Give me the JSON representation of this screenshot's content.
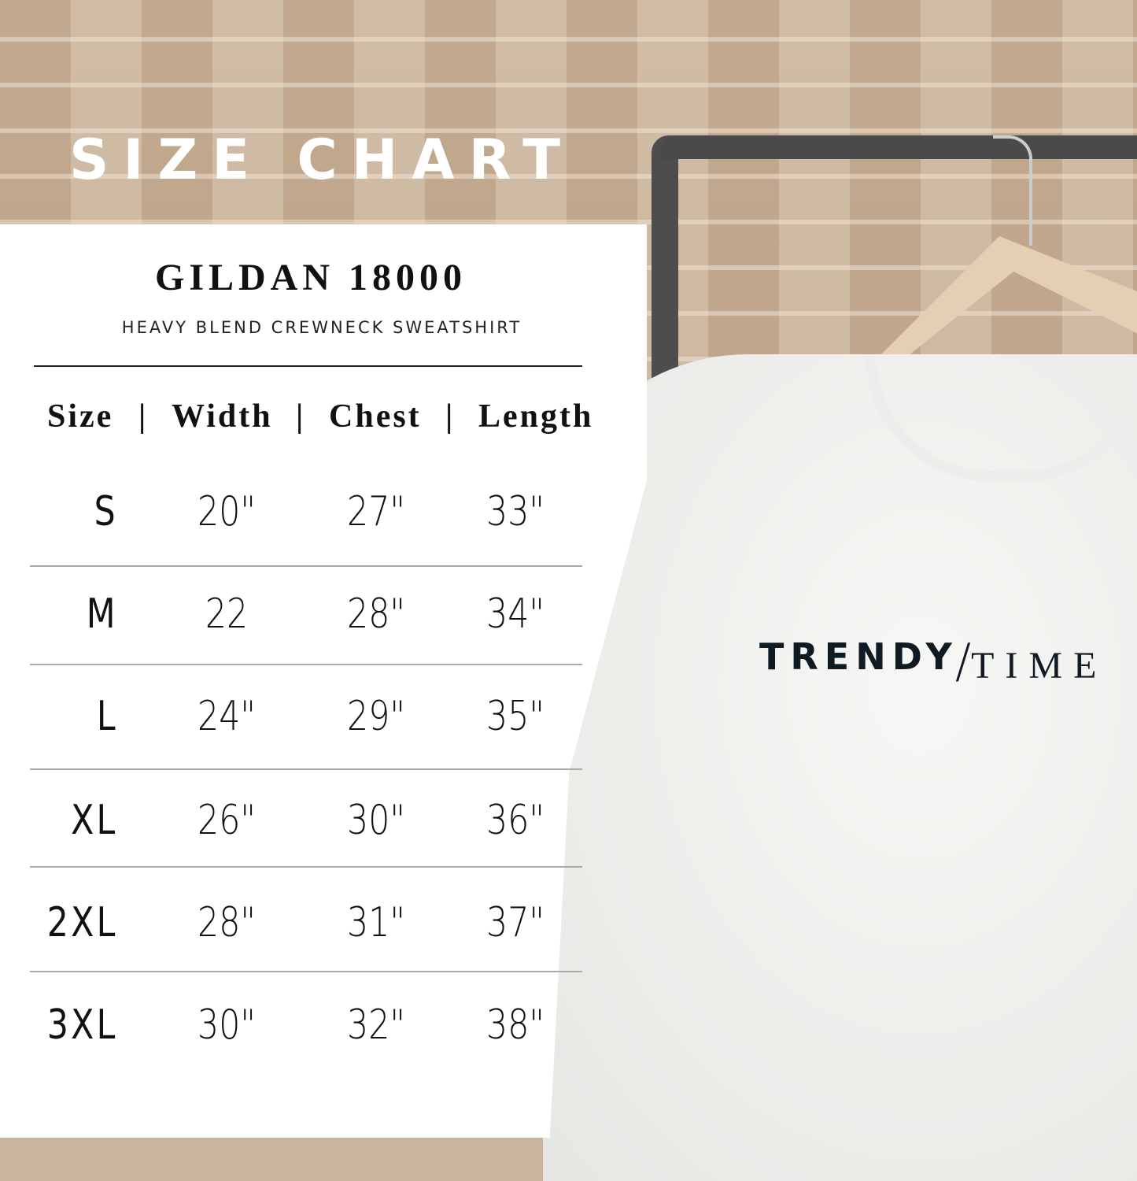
{
  "title": "SIZE CHART",
  "brand": "GILDAN 18000",
  "subtitle": "HEAVY BLEND CREWNECK SWEATSHIRT",
  "headers": [
    "Size",
    "Width",
    "Chest",
    "Length"
  ],
  "separator": "|",
  "rows": [
    [
      "S",
      "20\"",
      "27\"",
      "33\""
    ],
    [
      "M",
      "22",
      "28\"",
      "34\""
    ],
    [
      "L",
      "24\"",
      "29\"",
      "35\""
    ],
    [
      "XL",
      "26\"",
      "30\"",
      "36\""
    ],
    [
      "2XL",
      "28\"",
      "31\"",
      "37\""
    ],
    [
      "3XL",
      "30\"",
      "32\"",
      "38\""
    ]
  ],
  "shirt_logo": {
    "left": "TRENDY",
    "slash": "/",
    "right": "TIME"
  }
}
